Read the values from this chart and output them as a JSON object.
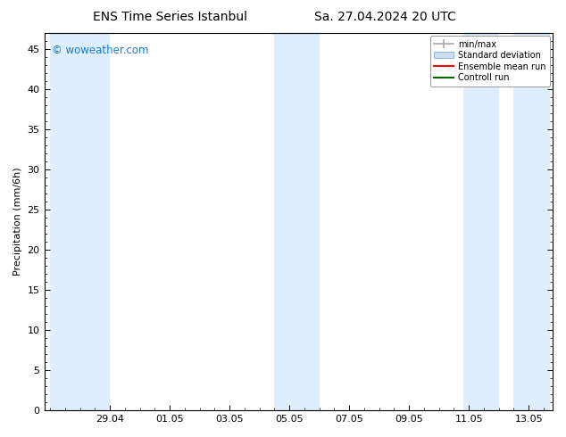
{
  "title": "ENS Time Series Istanbul",
  "title2": "Sa. 27.04.2024 20 UTC",
  "ylabel": "Precipitation (mm/6h)",
  "watermark": "© woweather.com",
  "watermark_color": "#1a7acd",
  "background_color": "#ffffff",
  "plot_bg_color": "#ffffff",
  "ylim": [
    0,
    47
  ],
  "yticks": [
    0,
    5,
    10,
    15,
    20,
    25,
    30,
    35,
    40,
    45
  ],
  "xtick_labels": [
    "29.04",
    "01.05",
    "03.05",
    "05.05",
    "07.05",
    "09.05",
    "11.05",
    "13.05"
  ],
  "xtick_positions": [
    2,
    4,
    6,
    8,
    10,
    12,
    14,
    16
  ],
  "shade_color": "#ddeeff",
  "shade_regions": [
    [
      0.0,
      2.0
    ],
    [
      7.5,
      9.0
    ],
    [
      13.8,
      15.0
    ],
    [
      15.5,
      16.7
    ]
  ],
  "legend_entries": [
    {
      "label": "min/max",
      "color": "#aaaaaa",
      "type": "errorbar"
    },
    {
      "label": "Standard deviation",
      "color": "#ccddf0",
      "type": "box"
    },
    {
      "label": "Ensemble mean run",
      "color": "#ff0000",
      "type": "line"
    },
    {
      "label": "Controll run",
      "color": "#006600",
      "type": "line"
    }
  ],
  "xmin": -0.2,
  "xmax": 16.8,
  "grid_color": "#dddddd",
  "font_size": 8,
  "title_font_size": 10
}
